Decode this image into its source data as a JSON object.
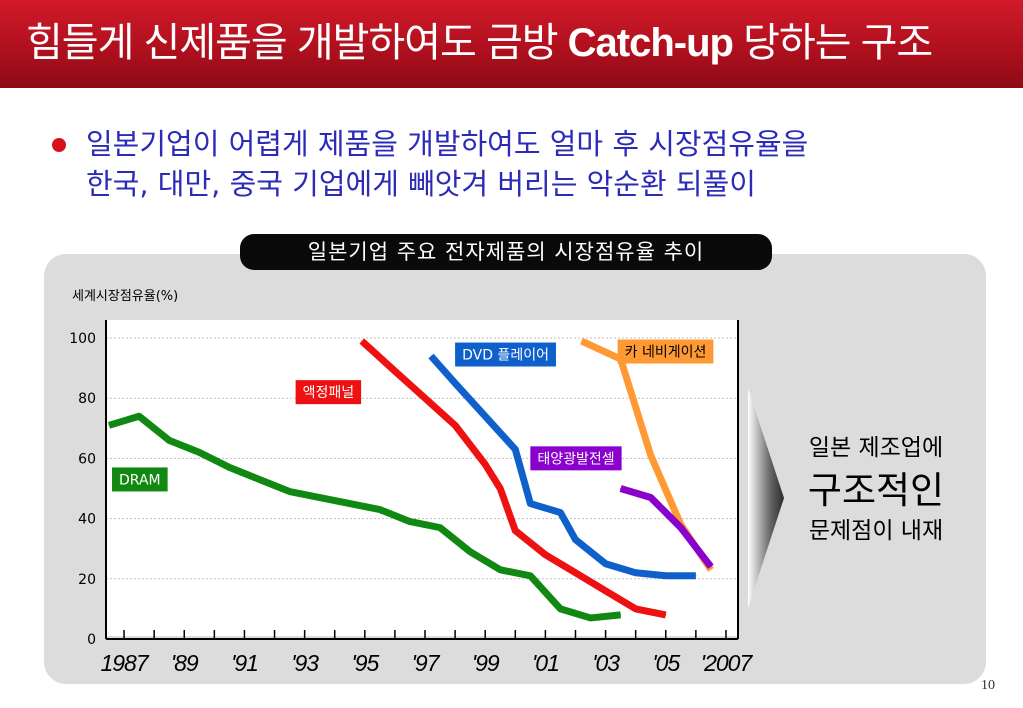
{
  "slide": {
    "title_prefix": "힘들게 신제품을 개발하여도 금방 ",
    "title_latin": "Catch-up",
    "title_suffix": " 당하는 구조",
    "bullet_line1": "일본기업이 어렵게 제품을 개발하여도 얼마 후 시장점유율을",
    "bullet_line2": "한국, 대만, 중국 기업에게 빼앗겨 버리는 악순환 되풀이",
    "page_number": "10"
  },
  "callout": {
    "line1": "일본 제조업에",
    "line2": "구조적인",
    "line3": "문제점이 내재"
  },
  "colors": {
    "title_bar": "#b0101e",
    "bullet_text": "#2b2bb8",
    "bullet_dot": "#d8101e"
  },
  "chart_data": {
    "type": "line",
    "title": "일본기업 주요 전자제품의 시장점유율 추이",
    "ylabel": "세계시장점유율(%)",
    "xlabel": "",
    "ylim": [
      0,
      100
    ],
    "xlim": [
      1986.4,
      2007.4
    ],
    "yticks": [
      0,
      20,
      40,
      60,
      80,
      100
    ],
    "xtick_labels": [
      {
        "x": 1987,
        "label": "1987"
      },
      {
        "x": 1989,
        "label": "'89"
      },
      {
        "x": 1991,
        "label": "'91"
      },
      {
        "x": 1993,
        "label": "'93"
      },
      {
        "x": 1995,
        "label": "'95"
      },
      {
        "x": 1997,
        "label": "'97"
      },
      {
        "x": 1999,
        "label": "'99"
      },
      {
        "x": 2001,
        "label": "'01"
      },
      {
        "x": 2003,
        "label": "'03"
      },
      {
        "x": 2005,
        "label": "'05"
      },
      {
        "x": 2007,
        "label": "'2007"
      }
    ],
    "series": [
      {
        "name": "DRAM",
        "color": "#118811",
        "label_color": "#118811",
        "label_text_color": "#ffffff",
        "label_anchor": [
          1986.6,
          57
        ],
        "x": [
          1986.5,
          1987.5,
          1988.5,
          1989.5,
          1990.5,
          1991.5,
          1992.5,
          1993.5,
          1994.5,
          1995.5,
          1996.5,
          1997.5,
          1998.5,
          1999.5,
          2000.5,
          2001.5,
          2002.5,
          2003.5
        ],
        "y": [
          71,
          74,
          66,
          62,
          57,
          53,
          49,
          47,
          45,
          43,
          39,
          37,
          29,
          23,
          21,
          10,
          7,
          8
        ]
      },
      {
        "name": "액정패널",
        "color": "#ee1111",
        "label_color": "#ee1111",
        "label_text_color": "#ffffff",
        "label_anchor": [
          1992.7,
          86
        ],
        "x": [
          1994.9,
          1996,
          1997,
          1998,
          1999,
          1999.5,
          2000,
          2001,
          2002,
          2003,
          2004,
          2005
        ],
        "y": [
          99,
          89,
          80,
          71,
          58,
          50,
          36,
          28,
          22,
          16,
          10,
          8
        ]
      },
      {
        "name": "DVD 플레이어",
        "color": "#1060cc",
        "label_color": "#1060cc",
        "label_text_color": "#ffffff",
        "label_anchor": [
          1998,
          98.5
        ],
        "x": [
          1997.2,
          1998,
          1999,
          2000,
          2000.5,
          2001.5,
          2002,
          2003,
          2004,
          2005,
          2006
        ],
        "y": [
          94,
          85,
          74,
          63,
          45,
          42,
          33,
          25,
          22,
          21,
          21
        ]
      },
      {
        "name": "카 네비게이션",
        "color": "#ff9933",
        "label_color": "#ff9933",
        "label_text_color": "#000000",
        "label_anchor": [
          2003.4,
          99.5
        ],
        "x": [
          2002.2,
          2003.5,
          2004.5,
          2005.5,
          2006.5
        ],
        "y": [
          99,
          93,
          61,
          38,
          23
        ]
      },
      {
        "name": "태양광발전셀",
        "color": "#8a00cc",
        "label_color": "#8a00cc",
        "label_text_color": "#ffffff",
        "label_anchor": [
          2000.5,
          64
        ],
        "x": [
          2003.5,
          2004.5,
          2005.5,
          2006.5
        ],
        "y": [
          50,
          47,
          37,
          24
        ]
      }
    ]
  }
}
